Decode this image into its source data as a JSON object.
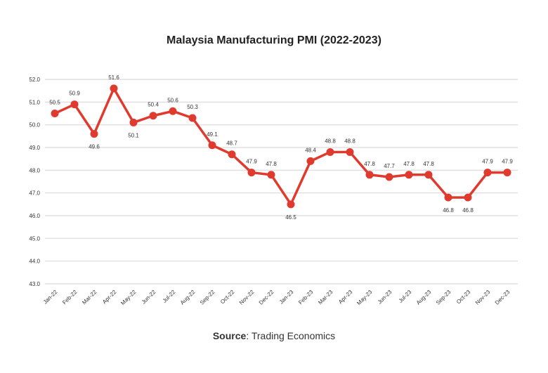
{
  "chart_data": {
    "type": "line",
    "title": "Malaysia Manufacturing PMI (2022-2023)",
    "xlabel": "",
    "ylabel": "",
    "ylim": [
      43.0,
      52.0
    ],
    "yticks": [
      "43.0",
      "44.0",
      "45.0",
      "46.0",
      "47.0",
      "48.0",
      "49.0",
      "50.0",
      "51.0",
      "52.0"
    ],
    "grid": true,
    "categories": [
      "Jan-22",
      "Feb-22",
      "Mar-22",
      "Apr-22",
      "May-22",
      "Jun-22",
      "Jul-22",
      "Aug-22",
      "Sep-22",
      "Oct-22",
      "Nov-22",
      "Dec-22",
      "Jan-23",
      "Feb-23",
      "Mar-23",
      "Apr-23",
      "May-23",
      "Jun-23",
      "Jul-23",
      "Aug-23",
      "Sep-23",
      "Oct-23",
      "Nov-23",
      "Dec-23"
    ],
    "values": [
      50.5,
      50.9,
      49.6,
      51.6,
      50.1,
      50.4,
      50.6,
      50.3,
      49.1,
      48.7,
      47.9,
      47.8,
      46.5,
      48.4,
      48.8,
      48.8,
      47.8,
      47.7,
      47.8,
      47.8,
      46.8,
      46.8,
      47.9,
      47.9
    ],
    "label_below": [
      "Mar-22",
      "May-22",
      "Jan-23",
      "Sep-23",
      "Oct-23"
    ],
    "line_color": "#e03a2f",
    "grid_color": "#e0e0e0"
  },
  "source": {
    "label": "Source",
    "text": ": Trading Economics"
  }
}
